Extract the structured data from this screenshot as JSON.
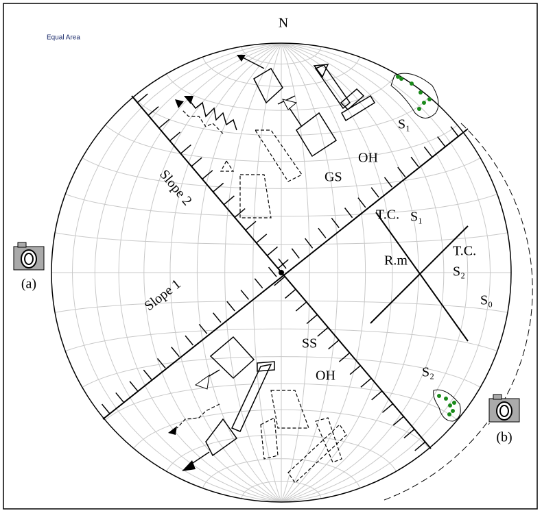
{
  "header": {
    "north": "N",
    "projection": "Equal Area"
  },
  "labels": [
    "Slope 2",
    "Slope 1",
    "S₁",
    "OH",
    "GS",
    "T.C.",
    "S₁",
    "T.C.",
    "S₂",
    "R.m",
    "S₀",
    "SS",
    "OH",
    "S₂"
  ],
  "cameras": [
    "(a)",
    "(b)"
  ]
}
